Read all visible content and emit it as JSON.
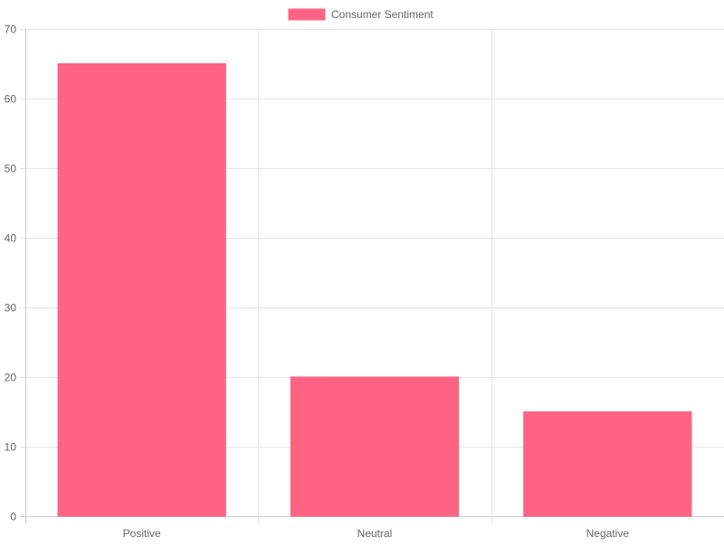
{
  "chart_data": {
    "type": "bar",
    "categories": [
      "Positive",
      "Neutral",
      "Negative"
    ],
    "series": [
      {
        "name": "Consumer Sentiment",
        "values": [
          65,
          20,
          15
        ],
        "color": "#ff6384"
      }
    ],
    "title": "",
    "xlabel": "",
    "ylabel": "",
    "ylim": [
      0,
      70
    ],
    "yticks": [
      0,
      10,
      20,
      30,
      40,
      50,
      60,
      70
    ],
    "grid": true,
    "legend": "top-center"
  },
  "colors": {
    "bar_fill": "#ff6384",
    "bar_border": "#ff6384",
    "grid": "#e5e5e5",
    "text": "#666666"
  }
}
